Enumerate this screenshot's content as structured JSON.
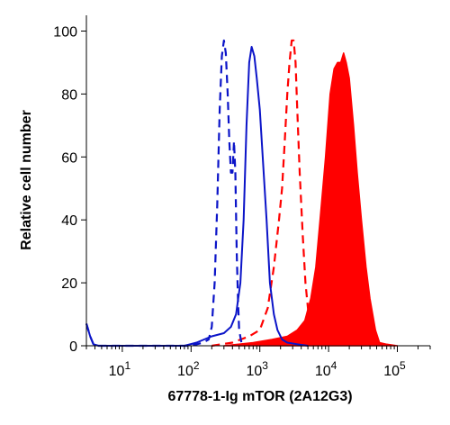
{
  "chart_data": {
    "type": "line",
    "title": "",
    "xlabel": "67778-1-Ig mTOR (2A12G3)",
    "ylabel": "Relative cell number",
    "x_scale": "log",
    "xlim": [
      3,
      300000
    ],
    "ylim": [
      0,
      105
    ],
    "x_tick_labels": [
      {
        "value": 10,
        "base": "10",
        "exp": "1"
      },
      {
        "value": 100,
        "base": "10",
        "exp": "2"
      },
      {
        "value": 1000,
        "base": "10",
        "exp": "3"
      },
      {
        "value": 10000,
        "base": "10",
        "exp": "4"
      },
      {
        "value": 100000,
        "base": "10",
        "exp": "5"
      }
    ],
    "y_ticks": [
      0,
      20,
      40,
      60,
      80,
      100
    ],
    "grid": false,
    "legend": "none",
    "colors": {
      "blue": "#0b14c8",
      "red": "#ff0000",
      "axis": "#000000"
    },
    "series": [
      {
        "style": "blue-dashed",
        "x": [
          3,
          3.4,
          3.8,
          4.5,
          6,
          100,
          150,
          180,
          200,
          220,
          240,
          260,
          280,
          300,
          320,
          340,
          360,
          380,
          400,
          420,
          440,
          460,
          480,
          500,
          550
        ],
        "y": [
          7,
          3,
          0.5,
          0,
          0,
          0,
          1,
          2,
          6,
          20,
          45,
          75,
          92,
          97,
          93,
          80,
          65,
          55,
          55,
          65,
          55,
          30,
          15,
          5,
          0
        ]
      },
      {
        "style": "blue-solid",
        "x": [
          3,
          3.4,
          3.8,
          4.5,
          6,
          80,
          120,
          200,
          300,
          380,
          450,
          520,
          580,
          640,
          700,
          760,
          830,
          900,
          1000,
          1100,
          1250,
          1400,
          1600,
          1800,
          2100,
          2500,
          3500,
          5000
        ],
        "y": [
          7,
          3,
          0.5,
          0,
          0,
          0,
          1,
          3,
          4,
          6,
          10,
          20,
          40,
          70,
          90,
          95,
          92,
          85,
          75,
          60,
          40,
          20,
          10,
          5,
          2,
          1,
          0.5,
          0
        ]
      },
      {
        "style": "red-dashed",
        "x": [
          200,
          400,
          700,
          1000,
          1300,
          1600,
          1900,
          2100,
          2300,
          2500,
          2700,
          2900,
          3100,
          3300,
          3500,
          3800,
          4200,
          4600,
          5200,
          6000
        ],
        "y": [
          0,
          1,
          3,
          5,
          12,
          25,
          40,
          50,
          65,
          80,
          90,
          97,
          97,
          90,
          75,
          55,
          35,
          20,
          8,
          0
        ]
      },
      {
        "style": "red-filled",
        "x": [
          300,
          800,
          1500,
          2500,
          3500,
          4500,
          5500,
          6500,
          7500,
          9000,
          10500,
          12000,
          13500,
          15000,
          16500,
          18000,
          20000,
          23000,
          26000,
          30000,
          35000,
          40000,
          48000,
          55000,
          70000,
          100000
        ],
        "y": [
          0,
          1,
          2,
          3,
          5,
          8,
          15,
          25,
          40,
          60,
          80,
          88,
          90,
          90,
          93,
          90,
          85,
          70,
          55,
          40,
          25,
          15,
          5,
          1,
          0.5,
          0
        ]
      }
    ]
  }
}
